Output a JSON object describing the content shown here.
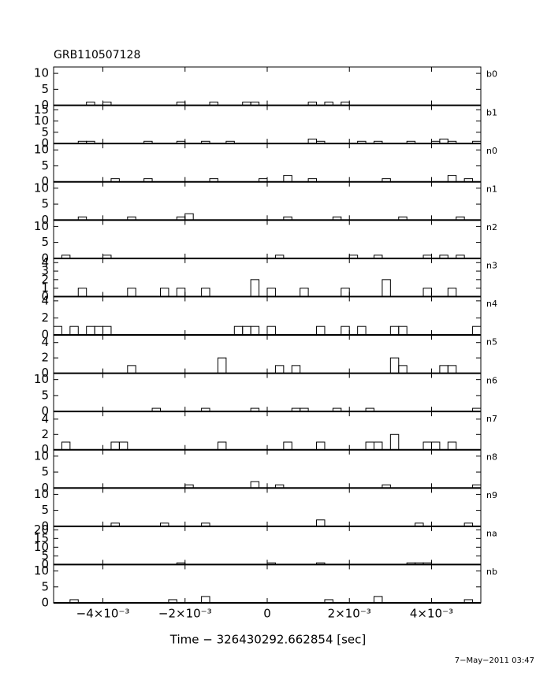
{
  "chart_data": {
    "type": "histogram",
    "title": "GRB110507128",
    "xlabel": "Time − 326430292.662854 [sec]",
    "footnote": "7−May−2011 03:47",
    "xlim": [
      -0.0052,
      0.0052
    ],
    "xticks": [
      {
        "value": -0.004,
        "label": "−4×10⁻³"
      },
      {
        "value": -0.002,
        "label": "−2×10⁻³"
      },
      0,
      {
        "value": 0.002,
        "label": "2×10⁻³"
      },
      {
        "value": 0.004,
        "label": "4×10⁻³"
      }
    ],
    "bins": [
      -0.0052,
      -0.005,
      -0.0048,
      -0.0046,
      -0.0044,
      -0.0042,
      -0.004,
      -0.0038,
      -0.0036,
      -0.0034,
      -0.0032,
      -0.003,
      -0.0028,
      -0.0026,
      -0.0024,
      -0.0022,
      -0.002,
      -0.0018,
      -0.0016,
      -0.0014,
      -0.0012,
      -0.001,
      -0.0008,
      -0.0006,
      -0.0004,
      -0.0002,
      0,
      0.0002,
      0.0004,
      0.0006,
      0.0008,
      0.001,
      0.0012,
      0.0014,
      0.0016,
      0.0018,
      0.002,
      0.0022,
      0.0024,
      0.0026,
      0.0028,
      0.003,
      0.0032,
      0.0034,
      0.0036,
      0.0038,
      0.004,
      0.0042,
      0.0044,
      0.0046,
      0.0048,
      0.005,
      0.0052
    ],
    "series": [
      {
        "name": "b0",
        "color": "#000000",
        "ylim": [
          0,
          12
        ],
        "yticks": [
          0,
          5,
          10
        ],
        "values": [
          0,
          0,
          0,
          0,
          1,
          0,
          1,
          0,
          0,
          0,
          0,
          0,
          0,
          0,
          0,
          1,
          0,
          0,
          0,
          1,
          0,
          0,
          0,
          1,
          1,
          0,
          0,
          0,
          0,
          0,
          0,
          1,
          0,
          1,
          0,
          1,
          0,
          0,
          0,
          0,
          0,
          0,
          0,
          0,
          0,
          0,
          0,
          0,
          0,
          0,
          0,
          0
        ]
      },
      {
        "name": "b1",
        "color": "#000000",
        "ylim": [
          0,
          17
        ],
        "yticks": [
          0,
          5,
          10,
          15
        ],
        "values": [
          0,
          0,
          0,
          1,
          1,
          0,
          0,
          0,
          0,
          0,
          0,
          1,
          0,
          0,
          0,
          1,
          0,
          0,
          1,
          0,
          0,
          1,
          0,
          0,
          0,
          0,
          0,
          0,
          0,
          0,
          0,
          2,
          1,
          0,
          0,
          0,
          0,
          1,
          0,
          1,
          0,
          0,
          0,
          1,
          0,
          0,
          1,
          2,
          1,
          0,
          0,
          1
        ]
      },
      {
        "name": "n0",
        "color": "#000000",
        "ylim": [
          0,
          12
        ],
        "yticks": [
          0,
          5,
          10
        ],
        "values": [
          0,
          0,
          0,
          0,
          0,
          0,
          0,
          1,
          0,
          0,
          0,
          1,
          0,
          0,
          0,
          0,
          0,
          0,
          0,
          1,
          0,
          0,
          0,
          0,
          0,
          1,
          0,
          0,
          2,
          0,
          0,
          1,
          0,
          0,
          0,
          0,
          0,
          0,
          0,
          0,
          1,
          0,
          0,
          0,
          0,
          0,
          0,
          0,
          2,
          0,
          1,
          0
        ]
      },
      {
        "name": "n1",
        "color": "#000000",
        "ylim": [
          0,
          12
        ],
        "yticks": [
          0,
          5,
          10
        ],
        "values": [
          0,
          0,
          0,
          1,
          0,
          0,
          0,
          0,
          0,
          1,
          0,
          0,
          0,
          0,
          0,
          1,
          2,
          0,
          0,
          0,
          0,
          0,
          0,
          0,
          0,
          0,
          0,
          0,
          1,
          0,
          0,
          0,
          0,
          0,
          1,
          0,
          0,
          0,
          0,
          0,
          0,
          0,
          1,
          0,
          0,
          0,
          0,
          0,
          0,
          1,
          0,
          0
        ]
      },
      {
        "name": "n2",
        "color": "#000000",
        "ylim": [
          0,
          12
        ],
        "yticks": [
          0,
          5,
          10
        ],
        "values": [
          0,
          1,
          0,
          0,
          0,
          0,
          1,
          0,
          0,
          0,
          0,
          0,
          0,
          0,
          0,
          0,
          0,
          0,
          0,
          0,
          0,
          0,
          0,
          0,
          0,
          0,
          0,
          1,
          0,
          0,
          0,
          0,
          0,
          0,
          0,
          0,
          1,
          0,
          0,
          1,
          0,
          0,
          0,
          0,
          0,
          1,
          0,
          1,
          0,
          1,
          0,
          0
        ]
      },
      {
        "name": "n3",
        "color": "#000000",
        "ylim": [
          0,
          4.5
        ],
        "yticks": [
          0,
          1,
          2,
          3,
          4
        ],
        "values": [
          0,
          0,
          0,
          1,
          0,
          0,
          0,
          0,
          0,
          1,
          0,
          0,
          0,
          1,
          0,
          1,
          0,
          0,
          1,
          0,
          0,
          0,
          0,
          0,
          2,
          0,
          1,
          0,
          0,
          0,
          1,
          0,
          0,
          0,
          0,
          1,
          0,
          0,
          0,
          0,
          2,
          0,
          0,
          0,
          0,
          1,
          0,
          0,
          1,
          0,
          0,
          0
        ]
      },
      {
        "name": "n4",
        "color": "#000000",
        "ylim": [
          0,
          4.5
        ],
        "yticks": [
          0,
          2,
          4
        ],
        "values": [
          1,
          0,
          1,
          0,
          1,
          1,
          1,
          0,
          0,
          0,
          0,
          0,
          0,
          0,
          0,
          0,
          0,
          0,
          0,
          0,
          0,
          0,
          1,
          1,
          1,
          0,
          1,
          0,
          0,
          0,
          0,
          0,
          1,
          0,
          0,
          1,
          0,
          1,
          0,
          0,
          0,
          1,
          1,
          0,
          0,
          0,
          0,
          0,
          0,
          0,
          0,
          1
        ]
      },
      {
        "name": "n5",
        "color": "#000000",
        "ylim": [
          0,
          5
        ],
        "yticks": [
          0,
          2,
          4
        ],
        "values": [
          0,
          0,
          0,
          0,
          0,
          0,
          0,
          0,
          0,
          1,
          0,
          0,
          0,
          0,
          0,
          0,
          0,
          0,
          0,
          0,
          2,
          0,
          0,
          0,
          0,
          0,
          0,
          1,
          0,
          1,
          0,
          0,
          0,
          0,
          0,
          0,
          0,
          0,
          0,
          0,
          0,
          2,
          1,
          0,
          0,
          0,
          0,
          1,
          1,
          0,
          0,
          0
        ]
      },
      {
        "name": "n6",
        "color": "#000000",
        "ylim": [
          0,
          12
        ],
        "yticks": [
          0,
          5,
          10
        ],
        "values": [
          0,
          0,
          0,
          0,
          0,
          0,
          0,
          0,
          0,
          0,
          0,
          0,
          1,
          0,
          0,
          0,
          0,
          0,
          1,
          0,
          0,
          0,
          0,
          0,
          1,
          0,
          0,
          0,
          0,
          1,
          1,
          0,
          0,
          0,
          1,
          0,
          0,
          0,
          1,
          0,
          0,
          0,
          0,
          0,
          0,
          0,
          0,
          0,
          0,
          0,
          0,
          1
        ]
      },
      {
        "name": "n7",
        "color": "#000000",
        "ylim": [
          0,
          5
        ],
        "yticks": [
          0,
          2,
          4
        ],
        "values": [
          0,
          1,
          0,
          0,
          0,
          0,
          0,
          1,
          1,
          0,
          0,
          0,
          0,
          0,
          0,
          0,
          0,
          0,
          0,
          0,
          1,
          0,
          0,
          0,
          0,
          0,
          0,
          0,
          1,
          0,
          0,
          0,
          1,
          0,
          0,
          0,
          0,
          0,
          1,
          1,
          0,
          2,
          0,
          0,
          0,
          1,
          1,
          0,
          1,
          0,
          0,
          0
        ]
      },
      {
        "name": "n8",
        "color": "#000000",
        "ylim": [
          0,
          12
        ],
        "yticks": [
          0,
          5,
          10
        ],
        "values": [
          0,
          0,
          0,
          0,
          0,
          0,
          0,
          0,
          0,
          0,
          0,
          0,
          0,
          0,
          0,
          0,
          1,
          0,
          0,
          0,
          0,
          0,
          0,
          0,
          2,
          0,
          0,
          1,
          0,
          0,
          0,
          0,
          0,
          0,
          0,
          0,
          0,
          0,
          0,
          0,
          1,
          0,
          0,
          0,
          0,
          0,
          0,
          0,
          0,
          0,
          0,
          1
        ]
      },
      {
        "name": "n9",
        "color": "#000000",
        "ylim": [
          0,
          12
        ],
        "yticks": [
          0,
          5,
          10
        ],
        "values": [
          0,
          0,
          0,
          0,
          0,
          0,
          0,
          1,
          0,
          0,
          0,
          0,
          0,
          1,
          0,
          0,
          0,
          0,
          1,
          0,
          0,
          0,
          0,
          0,
          0,
          0,
          0,
          0,
          0,
          0,
          0,
          0,
          2,
          0,
          0,
          0,
          0,
          0,
          0,
          0,
          0,
          0,
          0,
          0,
          1,
          0,
          0,
          0,
          0,
          0,
          1,
          0
        ]
      },
      {
        "name": "na",
        "color": "#000000",
        "ylim": [
          0,
          22
        ],
        "yticks": [
          0,
          5,
          10,
          15,
          20
        ],
        "values": [
          0,
          0,
          0,
          0,
          0,
          0,
          0,
          0,
          0,
          0,
          0,
          0,
          0,
          0,
          0,
          1,
          0,
          0,
          0,
          0,
          0,
          0,
          0,
          0,
          0,
          0,
          1,
          0,
          0,
          0,
          0,
          0,
          1,
          0,
          0,
          0,
          0,
          0,
          0,
          0,
          0,
          0,
          0,
          1,
          1,
          1,
          0,
          0,
          0,
          0,
          0,
          0
        ]
      },
      {
        "name": "nb",
        "color": "#000000",
        "ylim": [
          0,
          12
        ],
        "yticks": [
          0,
          5,
          10
        ],
        "values": [
          0,
          0,
          1,
          0,
          0,
          0,
          0,
          0,
          0,
          0,
          0,
          0,
          0,
          0,
          1,
          0,
          0,
          0,
          2,
          0,
          0,
          0,
          0,
          0,
          0,
          0,
          0,
          0,
          0,
          0,
          0,
          0,
          0,
          1,
          0,
          0,
          0,
          0,
          0,
          2,
          0,
          0,
          0,
          0,
          0,
          0,
          0,
          0,
          0,
          0,
          1,
          0
        ]
      }
    ]
  }
}
